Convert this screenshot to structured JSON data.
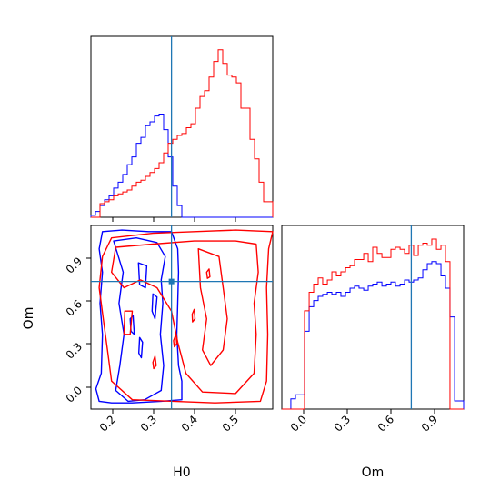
{
  "chart_data": [
    {
      "type": "histogram",
      "panel": "H0 marginal",
      "colors": {
        "blue": "#0000ff",
        "red": "#ff0000",
        "truth": "#1f77b4"
      },
      "x_range": [
        0.15,
        0.59
      ],
      "truth_x": 0.345,
      "bin_edges": [
        0.15,
        0.161,
        0.172,
        0.183,
        0.194,
        0.205,
        0.216,
        0.227,
        0.238,
        0.249,
        0.26,
        0.271,
        0.282,
        0.293,
        0.304,
        0.315,
        0.326,
        0.337,
        0.348,
        0.359,
        0.37,
        0.381,
        0.392,
        0.403,
        0.414,
        0.425,
        0.436,
        0.447,
        0.458,
        0.469,
        0.48,
        0.491,
        0.502,
        0.513,
        0.524,
        0.535,
        0.546,
        0.557,
        0.568,
        0.579,
        0.59
      ],
      "series": [
        {
          "values": [
            1,
            3,
            6,
            9,
            11,
            15,
            18,
            22,
            27,
            31,
            38,
            41,
            47,
            49,
            52,
            53,
            45,
            31,
            16,
            6,
            0,
            0,
            0,
            0,
            0,
            0,
            0,
            0,
            0,
            0,
            0,
            0,
            0,
            0,
            0,
            0,
            0,
            0,
            0,
            0
          ]
        },
        {
          "values": [
            0,
            0,
            7,
            8,
            9,
            11,
            12,
            13,
            14,
            16,
            18,
            19,
            21,
            23,
            25,
            28,
            33,
            38,
            40,
            42,
            43,
            46,
            48,
            56,
            62,
            65,
            72,
            80,
            86,
            79,
            73,
            72,
            69,
            56,
            56,
            40,
            30,
            18,
            8,
            8
          ]
        }
      ]
    },
    {
      "type": "contour",
      "panel": "H0 vs Om joint",
      "xlabel": "H0",
      "ylabel": "Om",
      "xticks": [
        "0.2",
        "0.3",
        "0.4",
        "0.5"
      ],
      "yticks": [
        "0.0",
        "0.3",
        "0.6",
        "0.9"
      ],
      "x_range": [
        0.15,
        0.59
      ],
      "y_range": [
        -0.08,
        1.1
      ],
      "truth_x": 0.345,
      "truth_y": 0.74,
      "series": [
        {
          "color": "#0000ff",
          "contours": [
            [
              [
                0.178,
                1.06
              ],
              [
                0.225,
                1.07
              ],
              [
                0.29,
                1.06
              ],
              [
                0.345,
                1.06
              ],
              [
                0.36,
                0.95
              ],
              [
                0.362,
                0.8
              ],
              [
                0.36,
                0.6
              ],
              [
                0.358,
                0.4
              ],
              [
                0.362,
                0.2
              ],
              [
                0.37,
                0.1
              ],
              [
                0.37,
                -0.02
              ],
              [
                0.32,
                -0.03
              ],
              [
                0.25,
                -0.04
              ],
              [
                0.2,
                -0.04
              ],
              [
                0.17,
                -0.03
              ],
              [
                0.162,
                0.05
              ],
              [
                0.175,
                0.15
              ],
              [
                0.178,
                0.4
              ],
              [
                0.172,
                0.6
              ],
              [
                0.178,
                0.8
              ],
              [
                0.17,
                0.95
              ],
              [
                0.178,
                1.06
              ]
            ],
            [
              [
                0.205,
                1.0
              ],
              [
                0.26,
                1.02
              ],
              [
                0.31,
                0.99
              ],
              [
                0.33,
                0.9
              ],
              [
                0.32,
                0.75
              ],
              [
                0.324,
                0.6
              ],
              [
                0.318,
                0.4
              ],
              [
                0.326,
                0.2
              ],
              [
                0.32,
                0.04
              ],
              [
                0.28,
                -0.02
              ],
              [
                0.24,
                -0.03
              ],
              [
                0.21,
                0.04
              ],
              [
                0.22,
                0.2
              ],
              [
                0.23,
                0.4
              ],
              [
                0.218,
                0.6
              ],
              [
                0.228,
                0.8
              ],
              [
                0.205,
                1.0
              ]
            ],
            [
              [
                0.265,
                0.86
              ],
              [
                0.285,
                0.84
              ],
              [
                0.282,
                0.7
              ],
              [
                0.268,
                0.72
              ],
              [
                0.265,
                0.86
              ]
            ],
            [
              [
                0.3,
                0.66
              ],
              [
                0.31,
                0.64
              ],
              [
                0.305,
                0.5
              ],
              [
                0.298,
                0.55
              ],
              [
                0.3,
                0.66
              ]
            ],
            [
              [
                0.245,
                0.5
              ],
              [
                0.252,
                0.52
              ],
              [
                0.255,
                0.4
              ],
              [
                0.247,
                0.42
              ],
              [
                0.245,
                0.5
              ]
            ],
            [
              [
                0.268,
                0.38
              ],
              [
                0.275,
                0.35
              ],
              [
                0.272,
                0.25
              ],
              [
                0.266,
                0.28
              ],
              [
                0.268,
                0.38
              ]
            ]
          ]
        },
        {
          "color": "#ff0000",
          "contours": [
            [
              [
                0.2,
                1.02
              ],
              [
                0.3,
                1.05
              ],
              [
                0.4,
                1.06
              ],
              [
                0.5,
                1.07
              ],
              [
                0.59,
                1.06
              ],
              [
                0.58,
                0.95
              ],
              [
                0.575,
                0.7
              ],
              [
                0.578,
                0.4
              ],
              [
                0.575,
                0.1
              ],
              [
                0.56,
                -0.03
              ],
              [
                0.45,
                -0.04
              ],
              [
                0.35,
                -0.03
              ],
              [
                0.25,
                -0.02
              ],
              [
                0.2,
                0.1
              ],
              [
                0.19,
                0.3
              ],
              [
                0.18,
                0.5
              ],
              [
                0.17,
                0.7
              ],
              [
                0.178,
                0.9
              ],
              [
                0.2,
                1.02
              ]
            ],
            [
              [
                0.21,
                0.96
              ],
              [
                0.3,
                0.98
              ],
              [
                0.4,
                1.0
              ],
              [
                0.5,
                1.0
              ],
              [
                0.55,
                0.98
              ],
              [
                0.555,
                0.8
              ],
              [
                0.545,
                0.6
              ],
              [
                0.55,
                0.4
              ],
              [
                0.545,
                0.15
              ],
              [
                0.5,
                0.02
              ],
              [
                0.42,
                0.03
              ],
              [
                0.38,
                0.15
              ],
              [
                0.36,
                0.35
              ],
              [
                0.345,
                0.55
              ],
              [
                0.31,
                0.7
              ],
              [
                0.27,
                0.75
              ],
              [
                0.23,
                0.7
              ],
              [
                0.2,
                0.8
              ],
              [
                0.21,
                0.96
              ]
            ],
            [
              [
                0.41,
                0.95
              ],
              [
                0.46,
                0.9
              ],
              [
                0.47,
                0.7
              ],
              [
                0.48,
                0.5
              ],
              [
                0.47,
                0.3
              ],
              [
                0.44,
                0.2
              ],
              [
                0.42,
                0.3
              ],
              [
                0.43,
                0.5
              ],
              [
                0.415,
                0.7
              ],
              [
                0.41,
                0.95
              ]
            ],
            [
              [
                0.232,
                0.55
              ],
              [
                0.25,
                0.55
              ],
              [
                0.245,
                0.4
              ],
              [
                0.23,
                0.4
              ],
              [
                0.232,
                0.55
              ]
            ],
            [
              [
                0.395,
                0.53
              ],
              [
                0.4,
                0.56
              ],
              [
                0.402,
                0.5
              ],
              [
                0.396,
                0.48
              ],
              [
                0.395,
                0.53
              ]
            ],
            [
              [
                0.3,
                0.22
              ],
              [
                0.305,
                0.26
              ],
              [
                0.308,
                0.2
              ],
              [
                0.302,
                0.18
              ],
              [
                0.3,
                0.22
              ]
            ],
            [
              [
                0.43,
                0.8
              ],
              [
                0.436,
                0.82
              ],
              [
                0.438,
                0.77
              ],
              [
                0.432,
                0.76
              ],
              [
                0.43,
                0.8
              ]
            ],
            [
              [
                0.35,
                0.36
              ],
              [
                0.356,
                0.4
              ],
              [
                0.358,
                0.34
              ],
              [
                0.352,
                0.32
              ],
              [
                0.35,
                0.36
              ]
            ]
          ]
        }
      ]
    },
    {
      "type": "histogram",
      "panel": "Om marginal",
      "xlabel": "Om",
      "xticks": [
        "0.0",
        "0.3",
        "0.6",
        "0.9"
      ],
      "colors": {
        "blue": "#0000ff",
        "red": "#ff0000",
        "truth": "#1f77b4"
      },
      "x_range": [
        -0.15,
        1.1
      ],
      "truth_x": 0.74,
      "bin_edges": [
        -0.15,
        -0.119,
        -0.088,
        -0.056,
        -0.025,
        0.006,
        0.038,
        0.069,
        0.1,
        0.131,
        0.163,
        0.194,
        0.225,
        0.256,
        0.288,
        0.319,
        0.35,
        0.381,
        0.413,
        0.444,
        0.475,
        0.506,
        0.538,
        0.569,
        0.6,
        0.631,
        0.663,
        0.694,
        0.725,
        0.756,
        0.788,
        0.819,
        0.85,
        0.881,
        0.913,
        0.944,
        0.975,
        1.006,
        1.038,
        1.069,
        1.1
      ],
      "series": [
        {
          "values": [
            0,
            0,
            5,
            7,
            7,
            38,
            50,
            53,
            55,
            56,
            57,
            56,
            57,
            55,
            57,
            59,
            60,
            59,
            58,
            60,
            61,
            62,
            60,
            61,
            62,
            60,
            61,
            63,
            62,
            63,
            64,
            68,
            71,
            72,
            71,
            65,
            59,
            45,
            4,
            4
          ]
        },
        {
          "values": [
            0,
            0,
            0,
            0,
            0,
            48,
            57,
            61,
            64,
            61,
            63,
            67,
            65,
            67,
            69,
            70,
            73,
            73,
            76,
            72,
            79,
            76,
            74,
            74,
            78,
            79,
            78,
            76,
            80,
            75,
            80,
            81,
            80,
            83,
            78,
            80,
            72,
            0,
            0,
            0
          ]
        }
      ]
    }
  ]
}
